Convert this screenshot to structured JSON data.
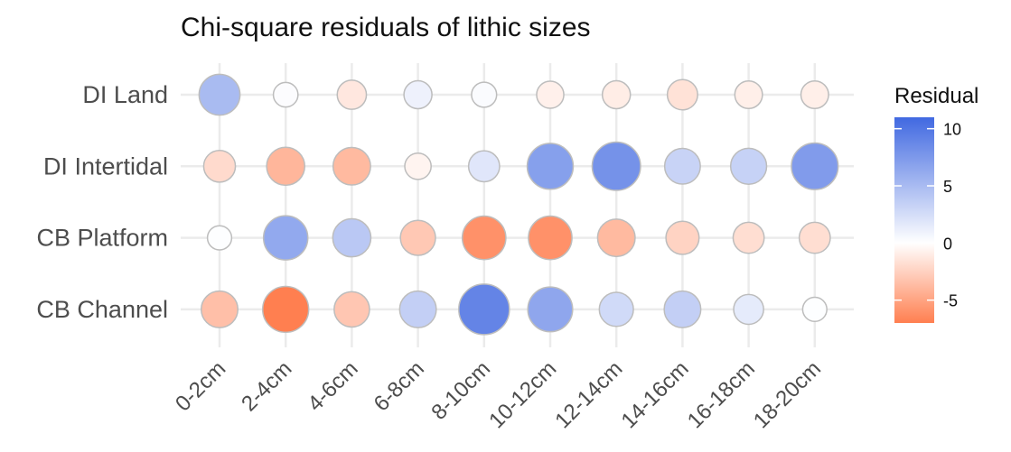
{
  "chart_data": {
    "type": "scatter",
    "title": "Chi-square residuals of lithic sizes",
    "xlabel": "",
    "ylabel": "",
    "categories": [
      "0-2cm",
      "2-4cm",
      "4-6cm",
      "6-8cm",
      "8-10cm",
      "10-12cm",
      "12-14cm",
      "14-16cm",
      "16-18cm",
      "18-20cm"
    ],
    "rows": [
      "DI Land",
      "DI Intertidal",
      "CB Platform",
      "CB Channel"
    ],
    "series": [
      {
        "row": "DI Land",
        "values": [
          5.0,
          0.2,
          -1.3,
          1.0,
          0.3,
          -0.8,
          -1.0,
          -1.6,
          -0.9,
          -0.9
        ]
      },
      {
        "row": "DI Intertidal",
        "values": [
          -2.0,
          -4.0,
          -3.8,
          -0.6,
          1.8,
          7.0,
          8.0,
          3.2,
          3.3,
          7.3
        ]
      },
      {
        "row": "CB Platform",
        "values": [
          0.1,
          6.3,
          4.0,
          -3.0,
          -6.0,
          -6.0,
          -3.8,
          -2.4,
          -1.8,
          -1.8
        ]
      },
      {
        "row": "CB Channel",
        "values": [
          -3.5,
          -7.0,
          -3.1,
          3.5,
          9.0,
          6.5,
          2.7,
          3.5,
          1.5,
          0.1
        ]
      }
    ],
    "legend": {
      "title": "Residual",
      "ticks": [
        10,
        5,
        0,
        -5
      ],
      "tick_labels": [
        "10",
        "5",
        "0",
        "-5"
      ],
      "range": [
        -7,
        11
      ],
      "position": "right"
    },
    "grid": true,
    "colors": {
      "high": "#4169E1",
      "mid": "#FFFFFF",
      "low": "#FF7F50",
      "point_border": "#BDBDBD",
      "grid": "#EBEBEB"
    }
  }
}
